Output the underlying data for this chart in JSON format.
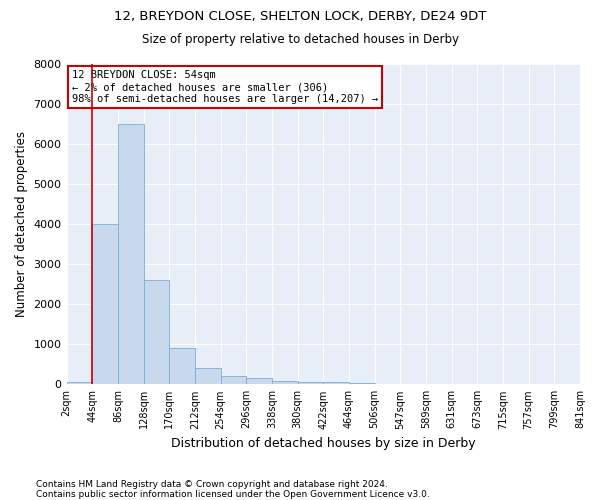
{
  "title": "12, BREYDON CLOSE, SHELTON LOCK, DERBY, DE24 9DT",
  "subtitle": "Size of property relative to detached houses in Derby",
  "xlabel": "Distribution of detached houses by size in Derby",
  "ylabel": "Number of detached properties",
  "footer1": "Contains HM Land Registry data © Crown copyright and database right 2024.",
  "footer2": "Contains public sector information licensed under the Open Government Licence v3.0.",
  "annotation_line0": "12 BREYDON CLOSE: 54sqm",
  "annotation_line1": "← 2% of detached houses are smaller (306)",
  "annotation_line2": "98% of semi-detached houses are larger (14,207) →",
  "bar_color": "#c8d9ee",
  "bar_edge_color": "#7aadd4",
  "vline_color": "#cc0000",
  "annotation_box_edgecolor": "#cc0000",
  "bin_labels": [
    "2sqm",
    "44sqm",
    "86sqm",
    "128sqm",
    "170sqm",
    "212sqm",
    "254sqm",
    "296sqm",
    "338sqm",
    "380sqm",
    "422sqm",
    "464sqm",
    "506sqm",
    "547sqm",
    "589sqm",
    "631sqm",
    "673sqm",
    "715sqm",
    "757sqm",
    "799sqm",
    "841sqm"
  ],
  "bar_heights": [
    60,
    4000,
    6500,
    2600,
    900,
    400,
    200,
    150,
    90,
    70,
    50,
    25,
    15,
    10,
    8,
    5,
    3,
    2,
    2,
    1
  ],
  "vline_bar_index": 1,
  "ylim": [
    0,
    8000
  ],
  "yticks": [
    0,
    1000,
    2000,
    3000,
    4000,
    5000,
    6000,
    7000,
    8000
  ],
  "figsize": [
    6.0,
    5.0
  ],
  "dpi": 100,
  "bg_color": "#e8eef8"
}
